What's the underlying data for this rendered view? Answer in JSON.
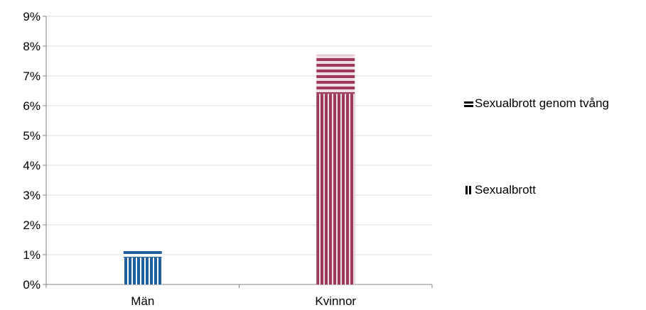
{
  "chart_data": {
    "type": "bar",
    "stacked": true,
    "categories": [
      "Män",
      "Kvinnor"
    ],
    "series": [
      {
        "name": "Sexualbrott",
        "values": [
          0.9,
          6.4
        ],
        "pattern": "vertical-stripes"
      },
      {
        "name": "Sexualbrott genom tvång",
        "values": [
          0.3,
          1.3
        ],
        "pattern": "horizontal-stripes"
      }
    ],
    "category_colors": {
      "Män": "#1f5fa0",
      "Kvinnor": "#9b3a5c"
    },
    "title": "",
    "xlabel": "",
    "ylabel": "",
    "ylim": [
      0,
      9
    ],
    "yticks": [
      "0%",
      "1%",
      "2%",
      "3%",
      "4%",
      "5%",
      "6%",
      "7%",
      "8%",
      "9%"
    ],
    "grid": true,
    "legend_position": "right"
  },
  "legend": {
    "items": [
      {
        "label": "Sexualbrott genom tvång",
        "pattern": "horizontal-stripes"
      },
      {
        "label": "Sexualbrott",
        "pattern": "vertical-stripes"
      }
    ]
  }
}
